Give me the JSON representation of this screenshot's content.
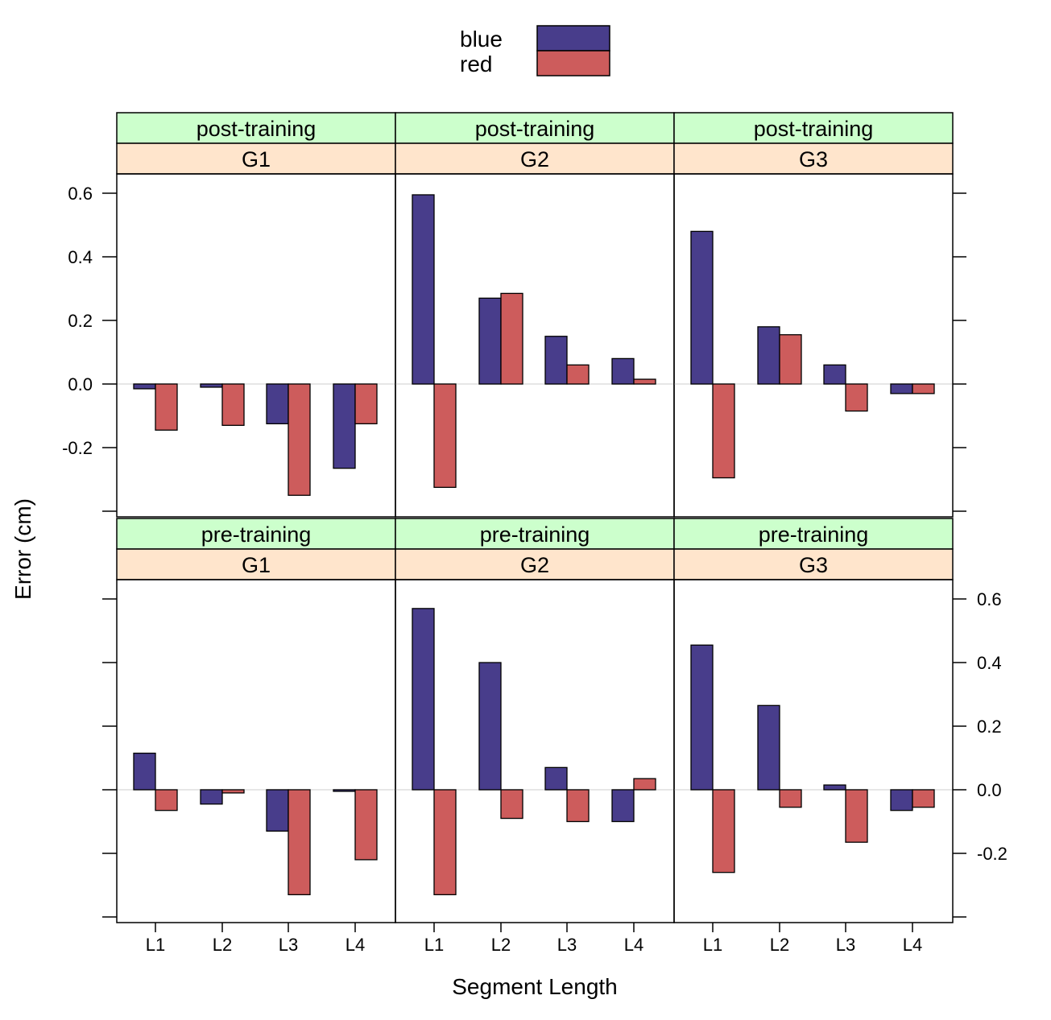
{
  "chart_data": {
    "type": "bar",
    "layout": "lattice 3 columns x 2 rows",
    "xlabel": "Segment Length",
    "ylabel": "Error (cm)",
    "ylim": [
      -0.4,
      0.65
    ],
    "yticks": [
      "-0.2",
      "0.0",
      "0.2",
      "0.4",
      "0.6"
    ],
    "ytick_values": [
      -0.2,
      0.0,
      0.2,
      0.4,
      0.6
    ],
    "categories": [
      "L1",
      "L2",
      "L3",
      "L4"
    ],
    "legend": {
      "position": "top",
      "entries": [
        {
          "name": "blue",
          "color": "#483d8b"
        },
        {
          "name": "red",
          "color": "#cd5c5c"
        }
      ]
    },
    "strip_colors": {
      "outer": "#ccffcc",
      "inner": "#ffe5cc"
    },
    "reference_line": 0.0,
    "panels": [
      {
        "phase": "post-training",
        "group": "G1",
        "series": [
          {
            "name": "blue",
            "values": [
              -0.015,
              -0.01,
              -0.125,
              -0.265
            ]
          },
          {
            "name": "red",
            "values": [
              -0.145,
              -0.13,
              -0.35,
              -0.125
            ]
          }
        ]
      },
      {
        "phase": "post-training",
        "group": "G2",
        "series": [
          {
            "name": "blue",
            "values": [
              0.595,
              0.27,
              0.15,
              0.08
            ]
          },
          {
            "name": "red",
            "values": [
              -0.325,
              0.285,
              0.06,
              0.015
            ]
          }
        ]
      },
      {
        "phase": "post-training",
        "group": "G3",
        "series": [
          {
            "name": "blue",
            "values": [
              0.48,
              0.18,
              0.06,
              -0.03
            ]
          },
          {
            "name": "red",
            "values": [
              -0.295,
              0.155,
              -0.085,
              -0.03
            ]
          }
        ]
      },
      {
        "phase": "pre-training",
        "group": "G1",
        "series": [
          {
            "name": "blue",
            "values": [
              0.115,
              -0.045,
              -0.13,
              -0.005
            ]
          },
          {
            "name": "red",
            "values": [
              -0.065,
              -0.01,
              -0.33,
              -0.22
            ]
          }
        ]
      },
      {
        "phase": "pre-training",
        "group": "G2",
        "series": [
          {
            "name": "blue",
            "values": [
              0.57,
              0.4,
              0.07,
              -0.1
            ]
          },
          {
            "name": "red",
            "values": [
              -0.33,
              -0.09,
              -0.1,
              0.035
            ]
          }
        ]
      },
      {
        "phase": "pre-training",
        "group": "G3",
        "series": [
          {
            "name": "blue",
            "values": [
              0.455,
              0.265,
              0.015,
              -0.065
            ]
          },
          {
            "name": "red",
            "values": [
              -0.26,
              -0.055,
              -0.165,
              -0.055
            ]
          }
        ]
      }
    ]
  }
}
